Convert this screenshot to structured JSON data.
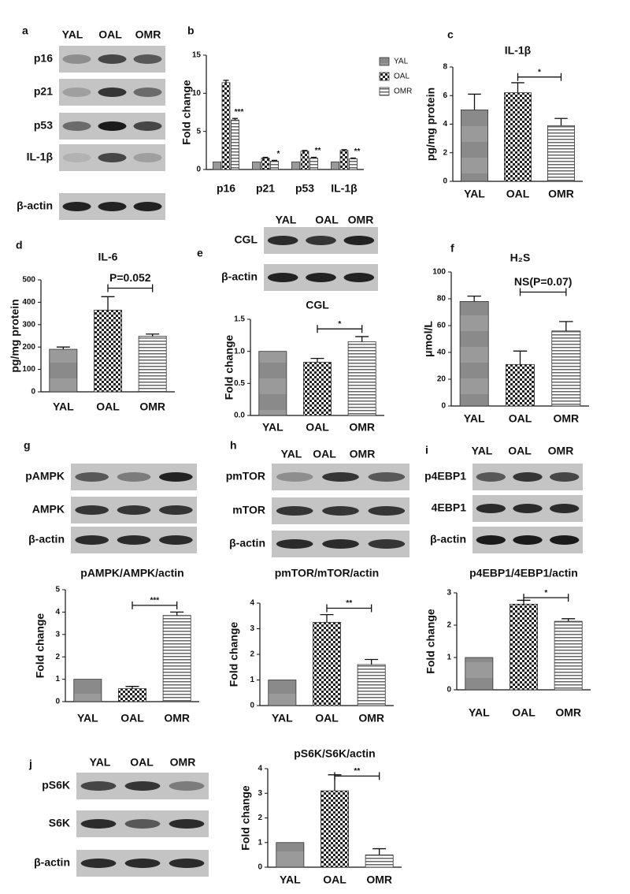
{
  "blots": [
    {
      "panel": "a",
      "columns": [
        "YAL",
        "OAL",
        "OMR"
      ],
      "rows": [
        "p16",
        "p21",
        "p53",
        "IL-1β",
        "β-actin"
      ]
    },
    {
      "panel": "e",
      "columns": [
        "YAL",
        "OAL",
        "OMR"
      ],
      "rows": [
        "CGL",
        "β-actin"
      ]
    },
    {
      "panel": "g",
      "rows": [
        "pAMPK",
        "AMPK",
        "β-actin"
      ]
    },
    {
      "panel": "h",
      "columns": [
        "YAL",
        "OAL",
        "OMR"
      ],
      "rows": [
        "pmTOR",
        "mTOR",
        "β-actin"
      ]
    },
    {
      "panel": "i",
      "columns": [
        "YAL",
        "OAL",
        "OMR"
      ],
      "rows": [
        "p4EBP1",
        "4EBP1",
        "β-actin"
      ]
    },
    {
      "panel": "j",
      "columns": [
        "YAL",
        "OAL",
        "OMR"
      ],
      "rows": [
        "pS6K",
        "S6K",
        "β-actin"
      ]
    }
  ],
  "chart_data": [
    {
      "type": "grouped-bar",
      "panel": "b",
      "y_label": "Fold change",
      "categories": [
        "p16",
        "p21",
        "p53",
        "IL-1β"
      ],
      "series": [
        {
          "name": "YAL",
          "values": [
            1,
            1,
            1,
            1
          ],
          "errors": [
            null,
            null,
            null,
            null
          ]
        },
        {
          "name": "OAL",
          "values": [
            11.4,
            1.5,
            2.4,
            2.5
          ],
          "errors": [
            0.3,
            0.1,
            0.1,
            0.1
          ]
        },
        {
          "name": "OMR",
          "values": [
            6.5,
            1.1,
            1.5,
            1.4
          ],
          "errors": [
            0.2,
            0.1,
            0.1,
            0.1
          ]
        }
      ],
      "annotations": [
        "***",
        "*",
        "**",
        "**"
      ],
      "ylim": [
        0,
        15
      ],
      "yticks": [
        0,
        5,
        10,
        15
      ]
    },
    {
      "type": "bar",
      "panel": "c",
      "title": "IL-1β",
      "y_label": "pg/mg protein",
      "categories": [
        "YAL",
        "OAL",
        "OMR"
      ],
      "values": [
        5.0,
        6.2,
        3.9
      ],
      "errors": [
        1.1,
        0.7,
        0.5
      ],
      "annotation": "*",
      "ylim": [
        0,
        8
      ],
      "yticks": [
        0,
        2,
        4,
        6,
        8
      ]
    },
    {
      "type": "bar",
      "panel": "d",
      "title": "IL-6",
      "y_label": "pg/mg protein",
      "categories": [
        "YAL",
        "OAL",
        "OMR"
      ],
      "values": [
        190,
        365,
        248
      ],
      "errors": [
        10,
        60,
        10
      ],
      "annotation": "P=0.052",
      "ylim": [
        0,
        500
      ],
      "yticks": [
        0,
        100,
        200,
        300,
        400,
        500
      ]
    },
    {
      "type": "bar",
      "title": "CGL",
      "y_label": "Fold change",
      "categories": [
        "YAL",
        "OAL",
        "OMR"
      ],
      "values": [
        1.0,
        0.83,
        1.15
      ],
      "errors": [
        null,
        0.06,
        0.08
      ],
      "annotation": "*",
      "ylim": [
        0,
        1.5
      ],
      "yticks": [
        {
          "value": 0,
          "label": "0.0"
        },
        0.5,
        {
          "value": 1,
          "label": "1.0"
        },
        1.5
      ]
    },
    {
      "type": "bar",
      "panel": "f",
      "title": "H₂S",
      "y_label": "μmol/L",
      "categories": [
        "YAL",
        "OAL",
        "OMR"
      ],
      "values": [
        78,
        31,
        56
      ],
      "errors": [
        4,
        10,
        7
      ],
      "annotation": "NS(P=0.07)",
      "ylim": [
        0,
        100
      ],
      "yticks": [
        0,
        20,
        40,
        60,
        80,
        100
      ]
    },
    {
      "type": "bar",
      "title": "pAMPK/AMPK/actin",
      "y_label": "Fold change",
      "categories": [
        "YAL",
        "OAL",
        "OMR"
      ],
      "values": [
        1.0,
        0.58,
        3.85
      ],
      "errors": [
        null,
        0.1,
        0.15
      ],
      "annotation": "***",
      "ylim": [
        0,
        5
      ],
      "yticks": [
        0,
        1,
        2,
        3,
        4,
        5
      ]
    },
    {
      "type": "bar",
      "title": "pmTOR/mTOR/actin",
      "y_label": "Fold change",
      "categories": [
        "YAL",
        "OAL",
        "OMR"
      ],
      "values": [
        1.0,
        3.25,
        1.6
      ],
      "errors": [
        null,
        0.3,
        0.2
      ],
      "annotation": "**",
      "ylim": [
        0,
        4
      ],
      "yticks": [
        0,
        1,
        2,
        3,
        4
      ]
    },
    {
      "type": "bar",
      "title": "p4EBP1/4EBP1/actin",
      "y_label": "Fold change",
      "categories": [
        "YAL",
        "OAL",
        "OMR"
      ],
      "values": [
        1.0,
        2.65,
        2.12
      ],
      "errors": [
        null,
        0.12,
        0.08
      ],
      "annotation": "*",
      "ylim": [
        0,
        3
      ],
      "yticks": [
        0,
        1,
        2,
        3
      ]
    },
    {
      "type": "bar",
      "title": "pS6K/S6K/actin",
      "y_label": "Fold change",
      "categories": [
        "YAL",
        "OAL",
        "OMR"
      ],
      "values": [
        1.0,
        3.1,
        0.5
      ],
      "errors": [
        null,
        0.65,
        0.25
      ],
      "annotation": "**",
      "ylim": [
        0,
        4
      ],
      "yticks": [
        0,
        1,
        2,
        3,
        4
      ]
    }
  ]
}
